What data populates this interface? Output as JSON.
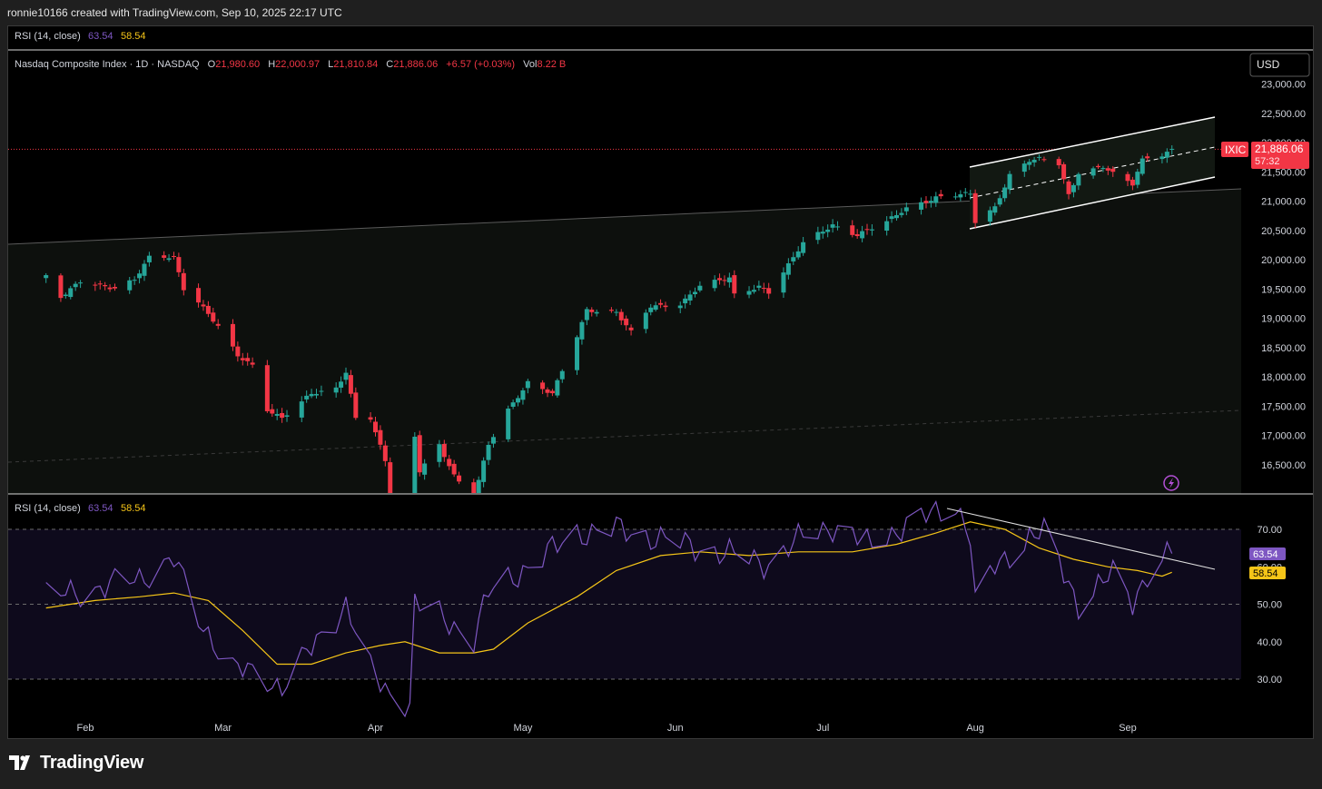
{
  "header": {
    "credit": "ronnie10166 created with TradingView.com, Sep 10, 2025 22:17 UTC"
  },
  "top_indicator": {
    "label": "RSI (14, close)",
    "value1": "63.54",
    "value2": "58.54"
  },
  "legend": {
    "symbol": "Nasdaq Composite Index · 1D · NASDAQ",
    "o_label": "O",
    "o_val": "21,980.60",
    "h_label": "H",
    "h_val": "22,000.97",
    "l_label": "L",
    "l_val": "21,810.84",
    "c_label": "C",
    "c_val": "21,886.06",
    "change": "+6.57 (+0.03%)",
    "vol_label": "Vol",
    "vol_val": "8.22 B"
  },
  "currency_button": "USD",
  "price_tag": {
    "ticker": "IXIC",
    "price": "21,886.06",
    "countdown": "57:32"
  },
  "rsi_pane": {
    "label": "RSI (14, close)",
    "value1": "63.54",
    "value2": "58.54"
  },
  "logo_text": "TradingView",
  "colors": {
    "up": "#26a69a",
    "down": "#f23645",
    "rsi": "#7e57c2",
    "rsi_ma": "#f5c518",
    "legend_red": "#f23645"
  },
  "chart_data": [
    {
      "type": "candlestick",
      "title": "Nasdaq Composite Index · 1D · NASDAQ",
      "y_ticks": [
        "23,000.00",
        "22,500.00",
        "22,000.00",
        "21,500.00",
        "21,000.00",
        "20,500.00",
        "20,000.00",
        "19,500.00",
        "19,000.00",
        "18,500.00",
        "18,000.00",
        "17,500.00",
        "17,000.00",
        "16,500.00"
      ],
      "x_ticks": [
        "Feb",
        "Mar",
        "Apr",
        "May",
        "Jun",
        "Jul",
        "Aug",
        "Sep"
      ],
      "ylim": [
        16050,
        23280
      ],
      "last_close": 21886.06,
      "close_path": [
        [
          "2025-01-24",
          19700
        ],
        [
          "2025-01-27",
          19340
        ],
        [
          "2025-01-31",
          19630
        ],
        [
          "2025-02-07",
          19520
        ],
        [
          "2025-02-11",
          19650
        ],
        [
          "2025-02-14",
          20030
        ],
        [
          "2025-02-19",
          20050
        ],
        [
          "2025-02-21",
          19520
        ],
        [
          "2025-02-24",
          19290
        ],
        [
          "2025-02-28",
          18850
        ],
        [
          "2025-03-04",
          18350
        ],
        [
          "2025-03-07",
          18200
        ],
        [
          "2025-03-10",
          17450
        ],
        [
          "2025-03-13",
          17300
        ],
        [
          "2025-03-19",
          17700
        ],
        [
          "2025-03-24",
          17800
        ],
        [
          "2025-03-26",
          18100
        ],
        [
          "2025-03-28",
          17300
        ],
        [
          "2025-03-31",
          17300
        ],
        [
          "2025-04-03",
          16550
        ],
        [
          "2025-04-04",
          15600
        ],
        [
          "2025-04-08",
          15300
        ],
        [
          "2025-04-09",
          17000
        ],
        [
          "2025-04-10",
          16400
        ],
        [
          "2025-04-14",
          16850
        ],
        [
          "2025-04-17",
          16300
        ],
        [
          "2025-04-21",
          15900
        ],
        [
          "2025-04-24",
          16850
        ],
        [
          "2025-04-28",
          17450
        ],
        [
          "2025-05-02",
          17900
        ],
        [
          "2025-05-07",
          17700
        ],
        [
          "2025-05-12",
          18700
        ],
        [
          "2025-05-14",
          19150
        ],
        [
          "2025-05-20",
          19100
        ],
        [
          "2025-05-23",
          18750
        ],
        [
          "2025-05-27",
          19200
        ],
        [
          "2025-06-02",
          19250
        ],
        [
          "2025-06-06",
          19550
        ],
        [
          "2025-06-12",
          19680
        ],
        [
          "2025-06-13",
          19400
        ],
        [
          "2025-06-18",
          19550
        ],
        [
          "2025-06-20",
          19450
        ],
        [
          "2025-06-24",
          19900
        ],
        [
          "2025-06-27",
          20280
        ],
        [
          "2025-07-03",
          20600
        ],
        [
          "2025-07-08",
          20420
        ],
        [
          "2025-07-14",
          20640
        ],
        [
          "2025-07-18",
          20890
        ],
        [
          "2025-07-24",
          21060
        ],
        [
          "2025-07-31",
          21120
        ],
        [
          "2025-08-01",
          20650
        ],
        [
          "2025-08-05",
          20900
        ],
        [
          "2025-08-08",
          21450
        ],
        [
          "2025-08-12",
          21690
        ],
        [
          "2025-08-14",
          21710
        ],
        [
          "2025-08-18",
          21630
        ],
        [
          "2025-08-20",
          21100
        ],
        [
          "2025-08-22",
          21500
        ],
        [
          "2025-08-27",
          21590
        ],
        [
          "2025-08-29",
          21460
        ],
        [
          "2025-09-02",
          21280
        ],
        [
          "2025-09-04",
          21700
        ],
        [
          "2025-09-05",
          21750
        ],
        [
          "2025-09-08",
          21800
        ],
        [
          "2025-09-10",
          21886
        ]
      ]
    },
    {
      "type": "line",
      "title": "RSI (14, close)",
      "y_ticks": [
        "70.00",
        "60.00",
        "50.00",
        "40.00",
        "30.00"
      ],
      "ylim": [
        22,
        79
      ],
      "bands": [
        30,
        50,
        70
      ],
      "series": [
        {
          "name": "RSI",
          "last": 63.54,
          "values": [
            [
              "2025-01-24",
              52
            ],
            [
              "2025-02-03",
              54
            ],
            [
              "2025-02-12",
              57
            ],
            [
              "2025-02-19",
              62
            ],
            [
              "2025-02-24",
              46
            ],
            [
              "2025-03-03",
              33
            ],
            [
              "2025-03-10",
              30
            ],
            [
              "2025-03-13",
              28
            ],
            [
              "2025-03-19",
              38
            ],
            [
              "2025-03-26",
              50
            ],
            [
              "2025-03-31",
              32
            ],
            [
              "2025-04-04",
              26
            ],
            [
              "2025-04-08",
              24
            ],
            [
              "2025-04-09",
              50
            ],
            [
              "2025-04-15",
              46
            ],
            [
              "2025-04-21",
              41
            ],
            [
              "2025-04-24",
              53
            ],
            [
              "2025-05-02",
              60
            ],
            [
              "2025-05-12",
              69
            ],
            [
              "2025-05-20",
              70
            ],
            [
              "2025-05-27",
              68
            ],
            [
              "2025-06-06",
              65
            ],
            [
              "2025-06-13",
              63
            ],
            [
              "2025-06-20",
              61
            ],
            [
              "2025-06-27",
              68
            ],
            [
              "2025-07-03",
              71
            ],
            [
              "2025-07-10",
              66
            ],
            [
              "2025-07-18",
              71
            ],
            [
              "2025-07-25",
              75
            ],
            [
              "2025-07-28",
              77
            ],
            [
              "2025-07-31",
              68
            ],
            [
              "2025-08-01",
              50
            ],
            [
              "2025-08-05",
              60
            ],
            [
              "2025-08-12",
              68
            ],
            [
              "2025-08-15",
              69
            ],
            [
              "2025-08-20",
              56
            ],
            [
              "2025-08-22",
              50
            ],
            [
              "2025-08-29",
              58
            ],
            [
              "2025-09-02",
              51
            ],
            [
              "2025-09-05",
              58
            ],
            [
              "2025-09-10",
              63.54
            ]
          ]
        },
        {
          "name": "RSI-based MA",
          "last": 58.54,
          "values": [
            [
              "2025-01-24",
              49
            ],
            [
              "2025-02-03",
              51
            ],
            [
              "2025-02-12",
              52
            ],
            [
              "2025-02-19",
              53
            ],
            [
              "2025-02-26",
              51
            ],
            [
              "2025-03-05",
              43
            ],
            [
              "2025-03-12",
              34
            ],
            [
              "2025-03-19",
              34
            ],
            [
              "2025-03-26",
              37
            ],
            [
              "2025-04-02",
              39
            ],
            [
              "2025-04-07",
              40
            ],
            [
              "2025-04-14",
              37
            ],
            [
              "2025-04-21",
              37
            ],
            [
              "2025-04-25",
              38
            ],
            [
              "2025-05-02",
              45
            ],
            [
              "2025-05-12",
              52
            ],
            [
              "2025-05-20",
              59
            ],
            [
              "2025-05-29",
              63
            ],
            [
              "2025-06-06",
              64
            ],
            [
              "2025-06-16",
              63
            ],
            [
              "2025-06-26",
              64
            ],
            [
              "2025-07-07",
              64
            ],
            [
              "2025-07-16",
              66
            ],
            [
              "2025-07-24",
              69
            ],
            [
              "2025-07-31",
              72
            ],
            [
              "2025-08-07",
              70
            ],
            [
              "2025-08-14",
              65
            ],
            [
              "2025-08-21",
              62
            ],
            [
              "2025-08-28",
              60
            ],
            [
              "2025-09-03",
              59
            ],
            [
              "2025-09-08",
              57.5
            ],
            [
              "2025-09-10",
              58.54
            ]
          ]
        }
      ]
    }
  ]
}
